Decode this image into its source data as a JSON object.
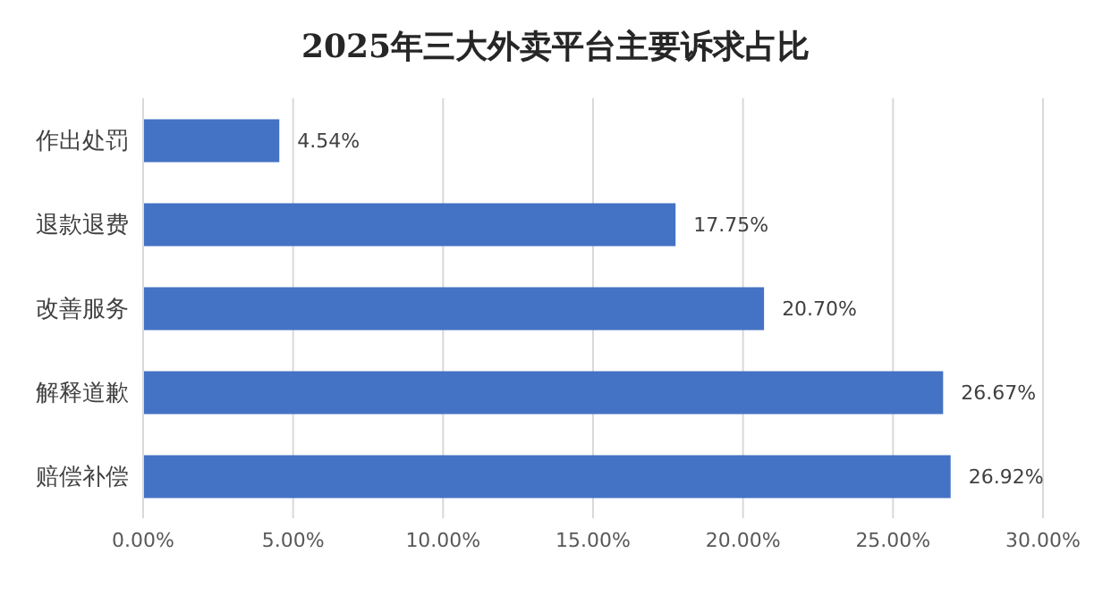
{
  "chart_data": {
    "type": "bar",
    "orientation": "horizontal",
    "title": "2025年三大外卖平台主要诉求占比",
    "categories": [
      "作出处罚",
      "退款退费",
      "改善服务",
      "解释道歉",
      "赔偿补偿"
    ],
    "values": [
      4.54,
      17.75,
      20.7,
      26.67,
      26.92
    ],
    "value_labels": [
      "4.54%",
      "17.75%",
      "20.70%",
      "26.67%",
      "26.92%"
    ],
    "color": "#4472c4",
    "xlim": [
      0,
      30
    ],
    "xticks": [
      {
        "value": 0,
        "label": "0.00%"
      },
      {
        "value": 5,
        "label": "5.00%"
      },
      {
        "value": 10,
        "label": "10.00%"
      },
      {
        "value": 15,
        "label": "15.00%"
      },
      {
        "value": 20,
        "label": "20.00%"
      },
      {
        "value": 25,
        "label": "25.00%"
      },
      {
        "value": 30,
        "label": "30.00%"
      }
    ],
    "grid": "x"
  }
}
